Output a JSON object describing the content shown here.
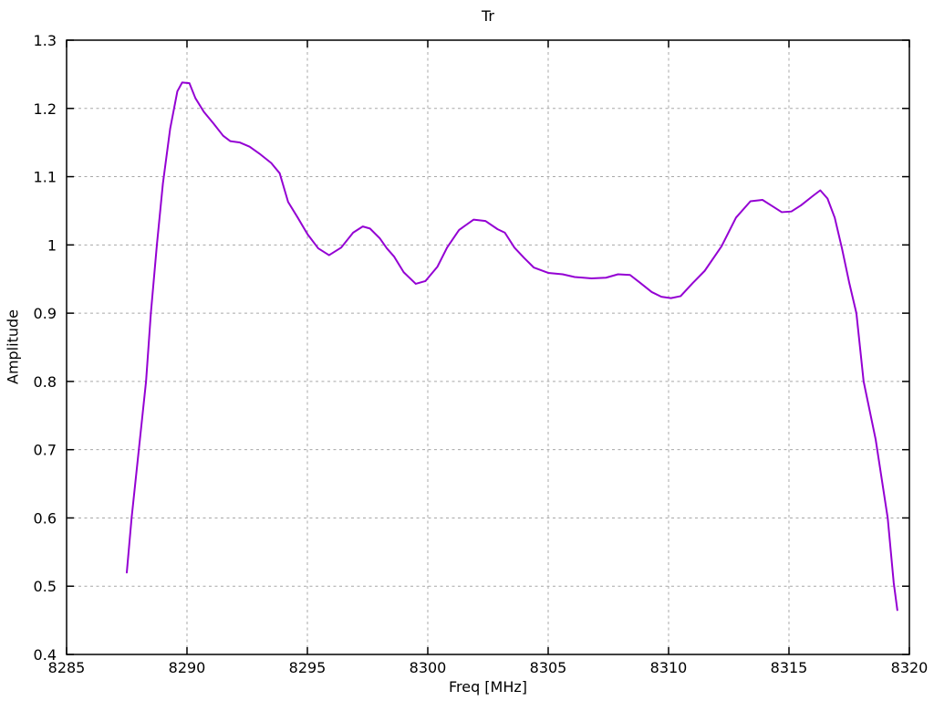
{
  "window": {
    "title": "Tr"
  },
  "chart_data": {
    "type": "line",
    "title": "Tr",
    "xlabel": "Freq [MHz]",
    "ylabel": "Amplitude",
    "xlim": [
      8285,
      8320
    ],
    "ylim": [
      0.4,
      1.3
    ],
    "xticks": {
      "values": [
        8285,
        8290,
        8295,
        8300,
        8305,
        8310,
        8315,
        8320
      ],
      "labels": [
        "8285",
        "8290",
        "8295",
        "8300",
        "8305",
        "8310",
        "8315",
        "8320"
      ]
    },
    "yticks": {
      "values": [
        0.4,
        0.5,
        0.6,
        0.7,
        0.8,
        0.9,
        1.0,
        1.1,
        1.2,
        1.3
      ],
      "labels": [
        "0.4",
        "0.5",
        "0.6",
        "0.7",
        "0.8",
        "0.9",
        "1",
        "1.1",
        "1.2",
        "1.3"
      ]
    },
    "grid": "dashed",
    "legend_position": "none",
    "colors": {
      "line": "#9400d3",
      "grid": "#a8a8a8",
      "axis": "#000000",
      "background": "#ffffff",
      "text": "#000000"
    },
    "series": [
      {
        "name": "Tr",
        "points": [
          [
            8287.5,
            0.52
          ],
          [
            8287.7,
            0.6
          ],
          [
            8288.0,
            0.7
          ],
          [
            8288.3,
            0.8
          ],
          [
            8288.5,
            0.9
          ],
          [
            8288.75,
            1.0
          ],
          [
            8289.0,
            1.09
          ],
          [
            8289.3,
            1.17
          ],
          [
            8289.6,
            1.225
          ],
          [
            8289.8,
            1.238
          ],
          [
            8290.1,
            1.237
          ],
          [
            8290.35,
            1.215
          ],
          [
            8290.7,
            1.195
          ],
          [
            8291.1,
            1.178
          ],
          [
            8291.5,
            1.16
          ],
          [
            8291.8,
            1.152
          ],
          [
            8292.2,
            1.15
          ],
          [
            8292.6,
            1.144
          ],
          [
            8293.0,
            1.134
          ],
          [
            8293.5,
            1.12
          ],
          [
            8293.85,
            1.105
          ],
          [
            8294.2,
            1.063
          ],
          [
            8294.6,
            1.04
          ],
          [
            8295.0,
            1.016
          ],
          [
            8295.45,
            0.995
          ],
          [
            8295.9,
            0.985
          ],
          [
            8296.4,
            0.996
          ],
          [
            8296.9,
            1.018
          ],
          [
            8297.3,
            1.027
          ],
          [
            8297.6,
            1.024
          ],
          [
            8298.0,
            1.01
          ],
          [
            8298.3,
            0.995
          ],
          [
            8298.6,
            0.983
          ],
          [
            8299.0,
            0.96
          ],
          [
            8299.5,
            0.943
          ],
          [
            8299.9,
            0.947
          ],
          [
            8300.4,
            0.968
          ],
          [
            8300.8,
            0.996
          ],
          [
            8301.3,
            1.022
          ],
          [
            8301.9,
            1.037
          ],
          [
            8302.4,
            1.035
          ],
          [
            8302.9,
            1.023
          ],
          [
            8303.2,
            1.018
          ],
          [
            8303.6,
            0.996
          ],
          [
            8304.0,
            0.981
          ],
          [
            8304.4,
            0.967
          ],
          [
            8305.0,
            0.959
          ],
          [
            8305.6,
            0.957
          ],
          [
            8306.1,
            0.953
          ],
          [
            8306.8,
            0.951
          ],
          [
            8307.4,
            0.952
          ],
          [
            8307.9,
            0.957
          ],
          [
            8308.4,
            0.956
          ],
          [
            8308.8,
            0.945
          ],
          [
            8309.3,
            0.931
          ],
          [
            8309.7,
            0.924
          ],
          [
            8310.1,
            0.922
          ],
          [
            8310.5,
            0.925
          ],
          [
            8311.0,
            0.944
          ],
          [
            8311.5,
            0.962
          ],
          [
            8312.2,
            0.998
          ],
          [
            8312.8,
            1.04
          ],
          [
            8313.4,
            1.064
          ],
          [
            8313.9,
            1.066
          ],
          [
            8314.3,
            1.057
          ],
          [
            8314.7,
            1.048
          ],
          [
            8315.1,
            1.049
          ],
          [
            8315.5,
            1.058
          ],
          [
            8316.0,
            1.072
          ],
          [
            8316.3,
            1.08
          ],
          [
            8316.6,
            1.068
          ],
          [
            8316.9,
            1.04
          ],
          [
            8317.2,
            0.995
          ],
          [
            8317.5,
            0.945
          ],
          [
            8317.8,
            0.9
          ],
          [
            8318.1,
            0.8
          ],
          [
            8318.6,
            0.715
          ],
          [
            8319.1,
            0.6
          ],
          [
            8319.35,
            0.505
          ],
          [
            8319.5,
            0.465
          ]
        ]
      }
    ]
  }
}
